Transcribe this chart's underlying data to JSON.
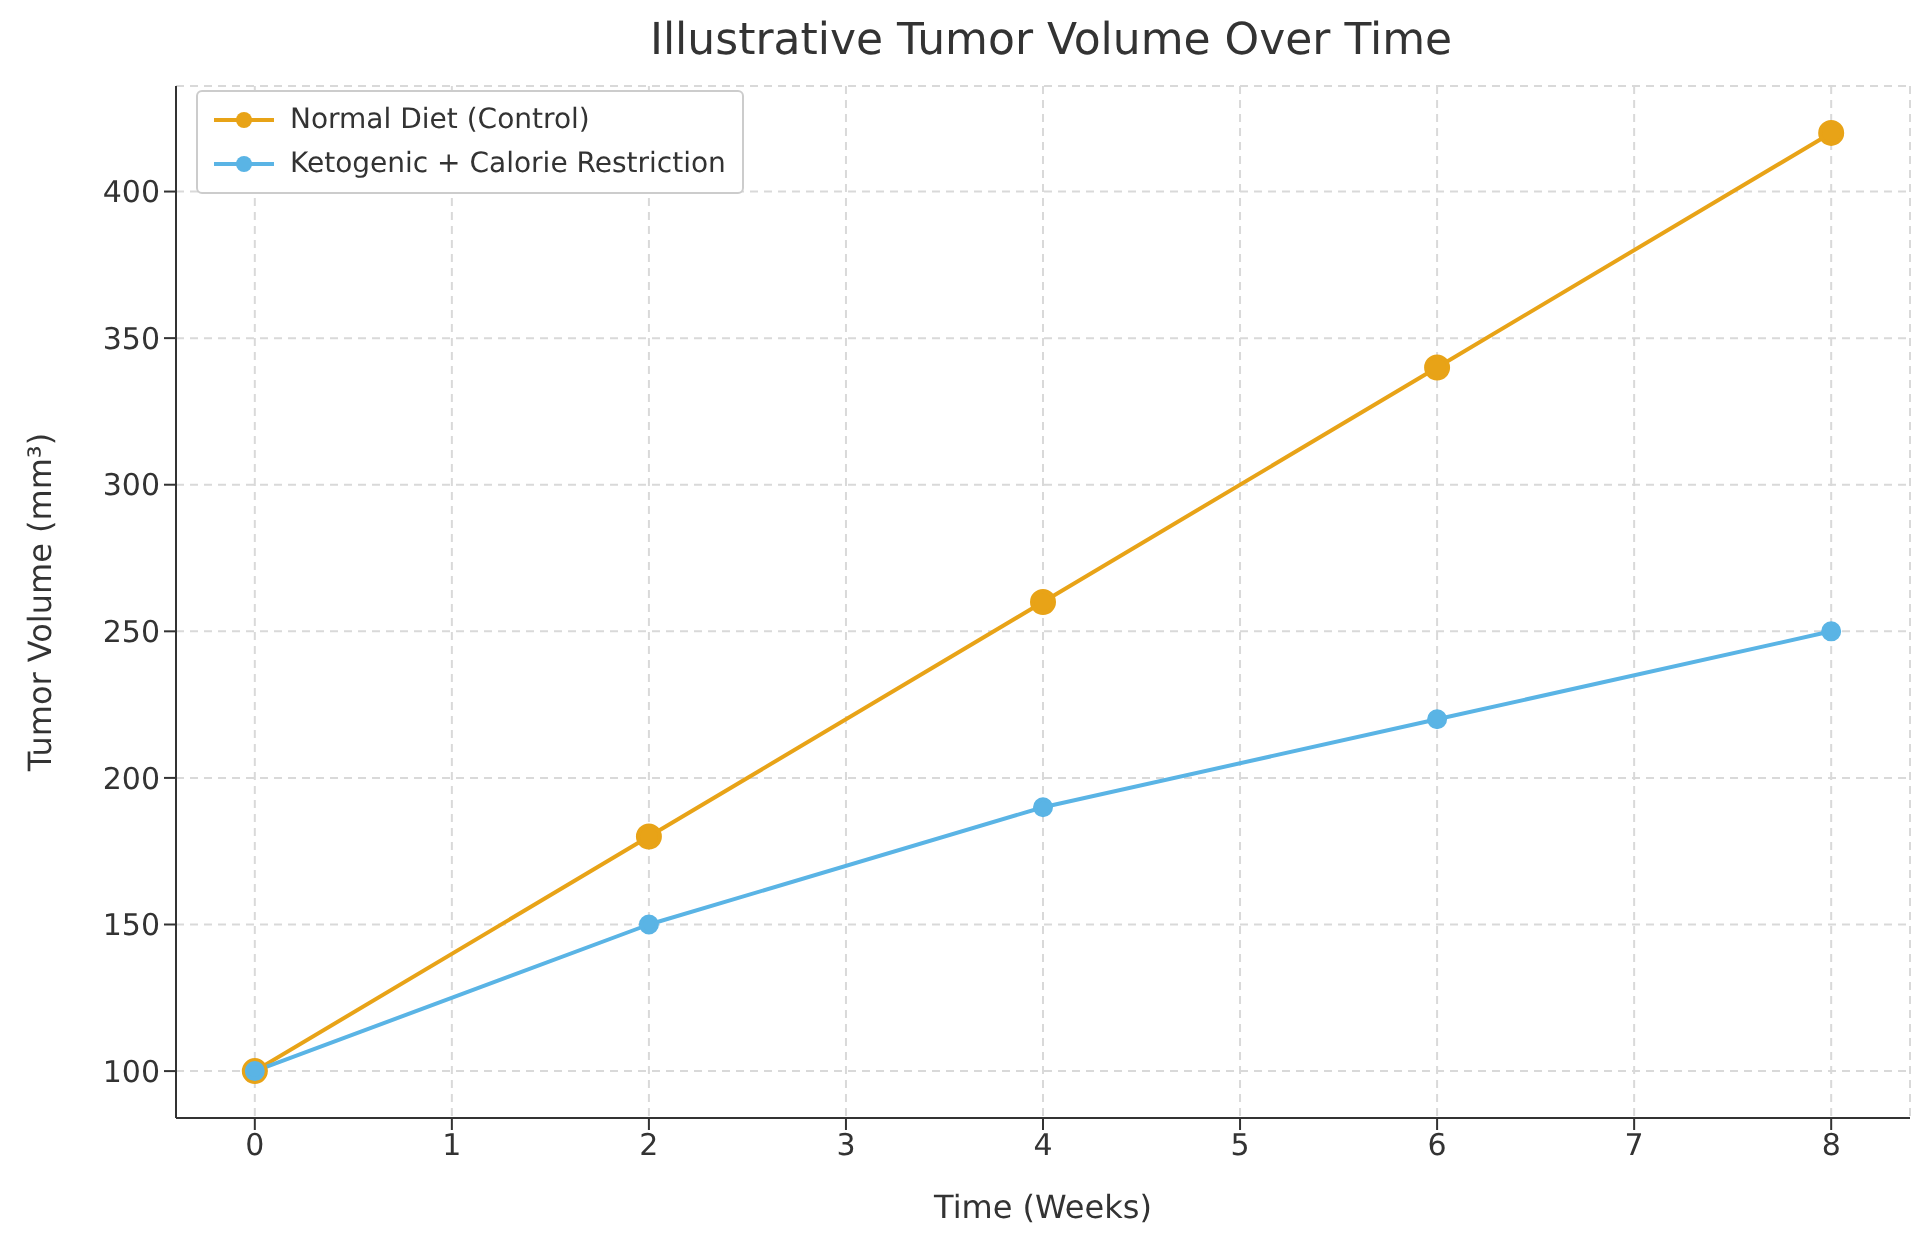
{
  "chart_data": {
    "type": "line",
    "title": "Illustrative Tumor Volume Over Time",
    "xlabel": "Time (Weeks)",
    "ylabel": "Tumor Volume (mm³)",
    "x": [
      0,
      2,
      4,
      6,
      8
    ],
    "series": [
      {
        "name": "Normal Diet (Control)",
        "color": "#e8a317",
        "values": [
          100,
          180,
          260,
          340,
          420
        ]
      },
      {
        "name": "Ketogenic + Calorie Restriction",
        "color": "#5ab4e5",
        "values": [
          100,
          150,
          190,
          220,
          250
        ]
      }
    ],
    "xlim": [
      -0.4,
      8.4
    ],
    "xticks": [
      0,
      1,
      2,
      3,
      4,
      5,
      6,
      7,
      8
    ],
    "ylim": [
      84,
      436
    ],
    "yticks": [
      100,
      150,
      200,
      250,
      300,
      350,
      400
    ],
    "grid": true,
    "legend": "top left",
    "marker": "circle",
    "line_style": "solid"
  }
}
